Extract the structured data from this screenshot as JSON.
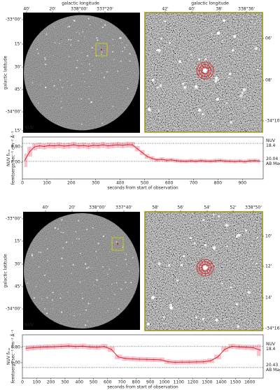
{
  "chart_data": [
    {
      "type": "image",
      "xlabel": "galactic longitude",
      "ylabel": "galactic latitude",
      "band_label": "NUV",
      "xtick_labels": [
        "40'",
        "20'",
        "338°00'",
        "337°20'"
      ],
      "ytick_labels": [
        "-33°00'",
        "15'",
        "30'",
        "45'",
        "-34°00'",
        "15'"
      ]
    },
    {
      "type": "zoom",
      "xlabel": "galactic longitude",
      "xtick_labels": [
        "42'",
        "40'",
        "38'",
        "338°36'"
      ],
      "ytick_labels": [
        "06'",
        "08'",
        "-34°10'"
      ]
    },
    {
      "type": "line",
      "color": "#d62728",
      "band_color": "#f4b0bf",
      "xlabel": "seconds from start of observation",
      "ylabel": {
        "main": "NUV f",
        "sub": "flux",
        "units": "femtoergs sec⁻¹ cm⁻² Å⁻¹"
      },
      "xlim": [
        0,
        985
      ],
      "ylim": [
        -0.87,
        1.31
      ],
      "xticks": [
        0,
        100,
        200,
        300,
        400,
        500,
        600,
        700,
        800,
        900
      ],
      "yticks": [
        {
          "value": 0,
          "label": "0.00"
        },
        {
          "value": 0.8,
          "label": "0.80"
        }
      ],
      "reference_lines": [
        {
          "value": 0.98,
          "labels": [
            "NUV",
            "18.4"
          ]
        },
        {
          "value": 0.04,
          "labels": [
            "20.04",
            "AB Mag"
          ]
        }
      ],
      "x": [
        10,
        30,
        50,
        70,
        90,
        110,
        130,
        150,
        170,
        190,
        210,
        230,
        250,
        270,
        290,
        310,
        330,
        350,
        370,
        390,
        410,
        430,
        450,
        470,
        490,
        510,
        530,
        550,
        570,
        590,
        610,
        630,
        650,
        670,
        690,
        710,
        730,
        750,
        770,
        790,
        810,
        830,
        850,
        870,
        890,
        910,
        930,
        950,
        970
      ],
      "values": [
        0.1,
        0.55,
        0.8,
        0.85,
        0.82,
        0.87,
        0.85,
        0.88,
        0.84,
        0.86,
        0.9,
        0.85,
        0.87,
        0.83,
        0.88,
        0.86,
        0.9,
        0.85,
        0.88,
        0.9,
        0.88,
        0.91,
        0.9,
        0.7,
        0.5,
        0.3,
        0.2,
        0.12,
        0.15,
        0.1,
        0.12,
        0.08,
        0.06,
        0.05,
        0.07,
        0.05,
        0.08,
        0.06,
        0.05,
        0.07,
        0.09,
        0.06,
        0.05,
        0.04,
        0.06,
        0.03,
        0.07,
        0.08,
        0.06
      ],
      "errors": [
        0.35,
        0.25,
        0.18,
        0.16,
        0.15,
        0.15,
        0.15,
        0.15,
        0.15,
        0.15,
        0.15,
        0.15,
        0.15,
        0.15,
        0.15,
        0.15,
        0.15,
        0.15,
        0.15,
        0.15,
        0.15,
        0.15,
        0.15,
        0.14,
        0.13,
        0.12,
        0.11,
        0.1,
        0.1,
        0.1,
        0.1,
        0.1,
        0.1,
        0.1,
        0.1,
        0.1,
        0.1,
        0.1,
        0.1,
        0.1,
        0.1,
        0.1,
        0.1,
        0.1,
        0.1,
        0.1,
        0.1,
        0.1,
        0.1
      ]
    },
    {
      "type": "image",
      "ylabel": "galactic latitude",
      "band_label": "NUV",
      "xtick_labels": [
        "40'",
        "20'",
        "338°00'",
        "337°40'"
      ],
      "ytick_labels": [
        "-33°00'",
        "15'",
        "30'",
        "45'",
        "-34°00'"
      ]
    },
    {
      "type": "zoom",
      "xtick_labels": [
        "58'",
        "56'",
        "54'",
        "52'",
        "338°50'"
      ],
      "ytick_labels": [
        "10'",
        "12'",
        "14'",
        "-34°16'"
      ]
    },
    {
      "type": "line",
      "color": "#d62728",
      "band_color": "#f4b0bf",
      "xlabel": "seconds from start of observation",
      "ylabel": {
        "main": "NUV f",
        "sub": "flux",
        "units": "femtoergs sec⁻¹ cm⁻² Å⁻¹"
      },
      "xlim": [
        0,
        1695
      ],
      "ylim": [
        -0.8,
        1.45
      ],
      "xticks": [
        0,
        100,
        200,
        300,
        400,
        500,
        600,
        700,
        800,
        900,
        1000,
        1100,
        1200,
        1300,
        1400,
        1500,
        1600
      ],
      "yticks": [
        {
          "value": 0,
          "label": "0.00"
        },
        {
          "value": 0.8,
          "label": "0.80"
        }
      ],
      "reference_lines": [
        {
          "value": 0.84,
          "labels": [
            "NUV",
            "18.4"
          ]
        },
        {
          "value": -0.25,
          "labels": [
            "20.43",
            "AB Mag"
          ]
        }
      ],
      "x": [
        25,
        75,
        125,
        175,
        225,
        275,
        325,
        375,
        425,
        475,
        525,
        575,
        625,
        675,
        725,
        775,
        825,
        875,
        925,
        975,
        1025,
        1075,
        1125,
        1175,
        1225,
        1275,
        1325,
        1375,
        1425,
        1475,
        1525,
        1575,
        1625,
        1675
      ],
      "values": [
        0.75,
        0.78,
        0.8,
        0.82,
        0.83,
        0.85,
        0.87,
        0.84,
        0.86,
        0.82,
        0.8,
        0.84,
        0.7,
        0.3,
        0.22,
        0.2,
        0.18,
        0.17,
        0.16,
        0.15,
        0.05,
        0.02,
        0.03,
        0.03,
        0.04,
        0.05,
        0.1,
        0.3,
        0.7,
        0.85,
        0.82,
        0.8,
        0.78,
        0.65
      ],
      "errors": [
        0.14,
        0.13,
        0.13,
        0.13,
        0.13,
        0.13,
        0.13,
        0.13,
        0.13,
        0.13,
        0.13,
        0.13,
        0.13,
        0.12,
        0.12,
        0.12,
        0.12,
        0.12,
        0.12,
        0.12,
        0.12,
        0.12,
        0.12,
        0.12,
        0.12,
        0.12,
        0.12,
        0.12,
        0.13,
        0.13,
        0.13,
        0.13,
        0.14,
        0.3
      ]
    }
  ]
}
